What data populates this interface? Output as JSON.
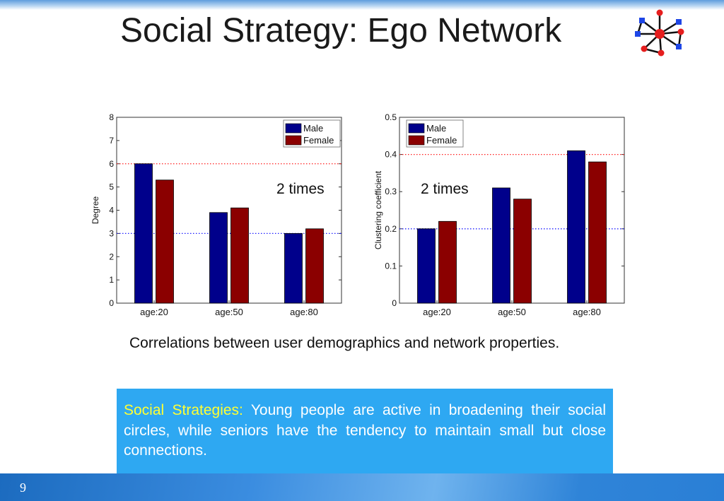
{
  "slide": {
    "title": "Social Strategy: Ego Network",
    "caption": "Correlations between user demographics and network properties.",
    "callout_label": "Social Strategies:",
    "callout_body": "Young people are active in broadening their social circles, while seniors have the tendency to maintain small but close connections.",
    "page_number": "9",
    "logo_icon": "network-graph-icon"
  },
  "colors": {
    "male": "#00008b",
    "female": "#8b0000",
    "callout_bg": "#2ea8f2",
    "callout_label": "#ffff33"
  },
  "chart_data": [
    {
      "type": "bar",
      "categories": [
        "age:20",
        "age:50",
        "age:80"
      ],
      "series": [
        {
          "name": "Male",
          "values": [
            6.0,
            3.9,
            3.0
          ]
        },
        {
          "name": "Female",
          "values": [
            5.3,
            4.1,
            3.2
          ]
        }
      ],
      "xlabel": "",
      "ylabel": "Degree",
      "ylim": [
        0,
        8
      ],
      "yticks": [
        "0",
        "1",
        "2",
        "3",
        "4",
        "5",
        "6",
        "7",
        "8"
      ],
      "reference_lines": [
        {
          "y": 6,
          "color": "red",
          "style": "dotted"
        },
        {
          "y": 3,
          "color": "blue",
          "style": "dotted"
        }
      ],
      "annotation": "2 times",
      "legend": "top-right",
      "grid": false
    },
    {
      "type": "bar",
      "categories": [
        "age:20",
        "age:50",
        "age:80"
      ],
      "series": [
        {
          "name": "Male",
          "values": [
            0.2,
            0.31,
            0.41
          ]
        },
        {
          "name": "Female",
          "values": [
            0.22,
            0.28,
            0.38
          ]
        }
      ],
      "xlabel": "",
      "ylabel": "Clustering coefficient",
      "ylim": [
        0,
        0.5
      ],
      "yticks": [
        "0",
        "0.1",
        "0.2",
        "0.3",
        "0.4",
        "0.5"
      ],
      "reference_lines": [
        {
          "y": 0.4,
          "color": "red",
          "style": "dotted"
        },
        {
          "y": 0.2,
          "color": "blue",
          "style": "dotted"
        }
      ],
      "annotation": "2 times",
      "legend": "top-left",
      "grid": false
    }
  ]
}
